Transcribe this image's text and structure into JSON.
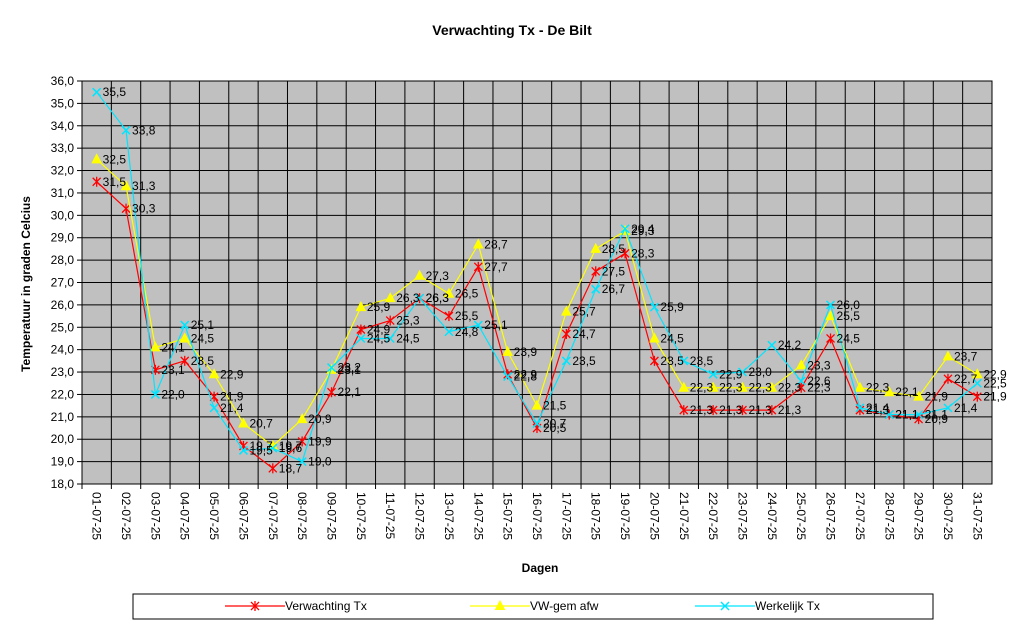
{
  "chart_data": {
    "type": "line",
    "title": "Verwachting Tx - De Bilt",
    "xlabel": "Dagen",
    "ylabel": "Temperatuur in graden Celcius",
    "ylim": [
      18,
      36
    ],
    "ytick_step": 1,
    "grid": true,
    "legend_position": "bottom",
    "plot_background": "#c0c0c0",
    "categories": [
      "01-07-25",
      "02-07-25",
      "03-07-25",
      "04-07-25",
      "05-07-25",
      "06-07-25",
      "07-07-25",
      "08-07-25",
      "09-07-25",
      "10-07-25",
      "11-07-25",
      "12-07-25",
      "13-07-25",
      "14-07-25",
      "15-07-25",
      "16-07-25",
      "17-07-25",
      "18-07-25",
      "19-07-25",
      "20-07-25",
      "21-07-25",
      "22-07-25",
      "23-07-25",
      "24-07-25",
      "25-07-25",
      "26-07-25",
      "27-07-25",
      "28-07-25",
      "29-07-25",
      "30-07-25",
      "31-07-25"
    ],
    "series": [
      {
        "name": "Verwachting Tx",
        "color": "#ff0000",
        "marker": "star",
        "values": [
          31.5,
          30.3,
          23.1,
          23.5,
          21.9,
          19.7,
          18.7,
          19.9,
          22.1,
          24.9,
          25.3,
          26.3,
          25.5,
          27.7,
          22.9,
          20.5,
          24.7,
          27.5,
          28.3,
          23.5,
          21.3,
          21.3,
          21.3,
          21.3,
          22.3,
          24.5,
          21.3,
          21.1,
          20.9,
          22.7,
          21.9
        ],
        "labels": [
          "31,5",
          "30,3",
          "23,1",
          "23,5",
          "21,9",
          "19,7",
          "18,7",
          "19,9",
          "22,1",
          "24,9",
          "25,3",
          "26,3",
          "25,5",
          "27,7",
          "22,9",
          "20,5",
          "24,7",
          "27,5",
          "28,3",
          "23,5",
          "21,3",
          "21,3",
          "21,3",
          "21,3",
          "22,3",
          "24,5",
          "21,3",
          "21,1",
          "20,9",
          "22,7",
          "21,9"
        ]
      },
      {
        "name": "VW-gem afw",
        "color": "#ffff00",
        "marker": "triangle",
        "values": [
          32.5,
          31.3,
          24.1,
          24.5,
          22.9,
          20.7,
          19.7,
          20.9,
          23.1,
          25.9,
          26.3,
          27.3,
          26.5,
          28.7,
          23.9,
          21.5,
          25.7,
          28.5,
          29.3,
          24.5,
          22.3,
          22.3,
          22.3,
          22.3,
          23.3,
          25.5,
          22.3,
          22.1,
          21.9,
          23.7,
          22.9
        ],
        "labels": [
          "32,5",
          "31,3",
          "24,1",
          "24,5",
          "22,9",
          "20,7",
          "19,7",
          "20,9",
          "23,1",
          "25,9",
          "26,3",
          "27,3",
          "26,5",
          "28,7",
          "23,9",
          "21,5",
          "25,7",
          "28,5",
          "29,3",
          "24,5",
          "22,3",
          "22,3",
          "22,3",
          "22,3",
          "23,3",
          "25,5",
          "22,3",
          "22,1",
          "21,9",
          "23,7",
          "22,9"
        ]
      },
      {
        "name": "Werkelijk Tx",
        "color": "#00e5ff",
        "marker": "x",
        "values": [
          35.5,
          33.8,
          22.0,
          25.1,
          21.4,
          19.5,
          19.6,
          19.0,
          23.2,
          24.5,
          24.5,
          26.3,
          24.8,
          25.1,
          22.8,
          20.7,
          23.5,
          26.7,
          29.4,
          25.9,
          23.5,
          22.9,
          23.0,
          24.2,
          22.6,
          26.0,
          21.4,
          21.1,
          21.1,
          21.4,
          22.5
        ],
        "labels": [
          "35,5",
          "33,8",
          "22,0",
          "25,1",
          "21,4",
          "19,5",
          "19,6",
          "19,0",
          "23,2",
          "24,5",
          "24,5",
          "26,3",
          "24,8",
          "25,1",
          "22,8",
          "20,7",
          "23,5",
          "26,7",
          "29,4",
          "25,9",
          "23,5",
          "22,9",
          "23,0",
          "24,2",
          "22,6",
          "26,0",
          "21,4",
          "21,1",
          "21,1",
          "21,4",
          "22,5"
        ]
      }
    ]
  }
}
